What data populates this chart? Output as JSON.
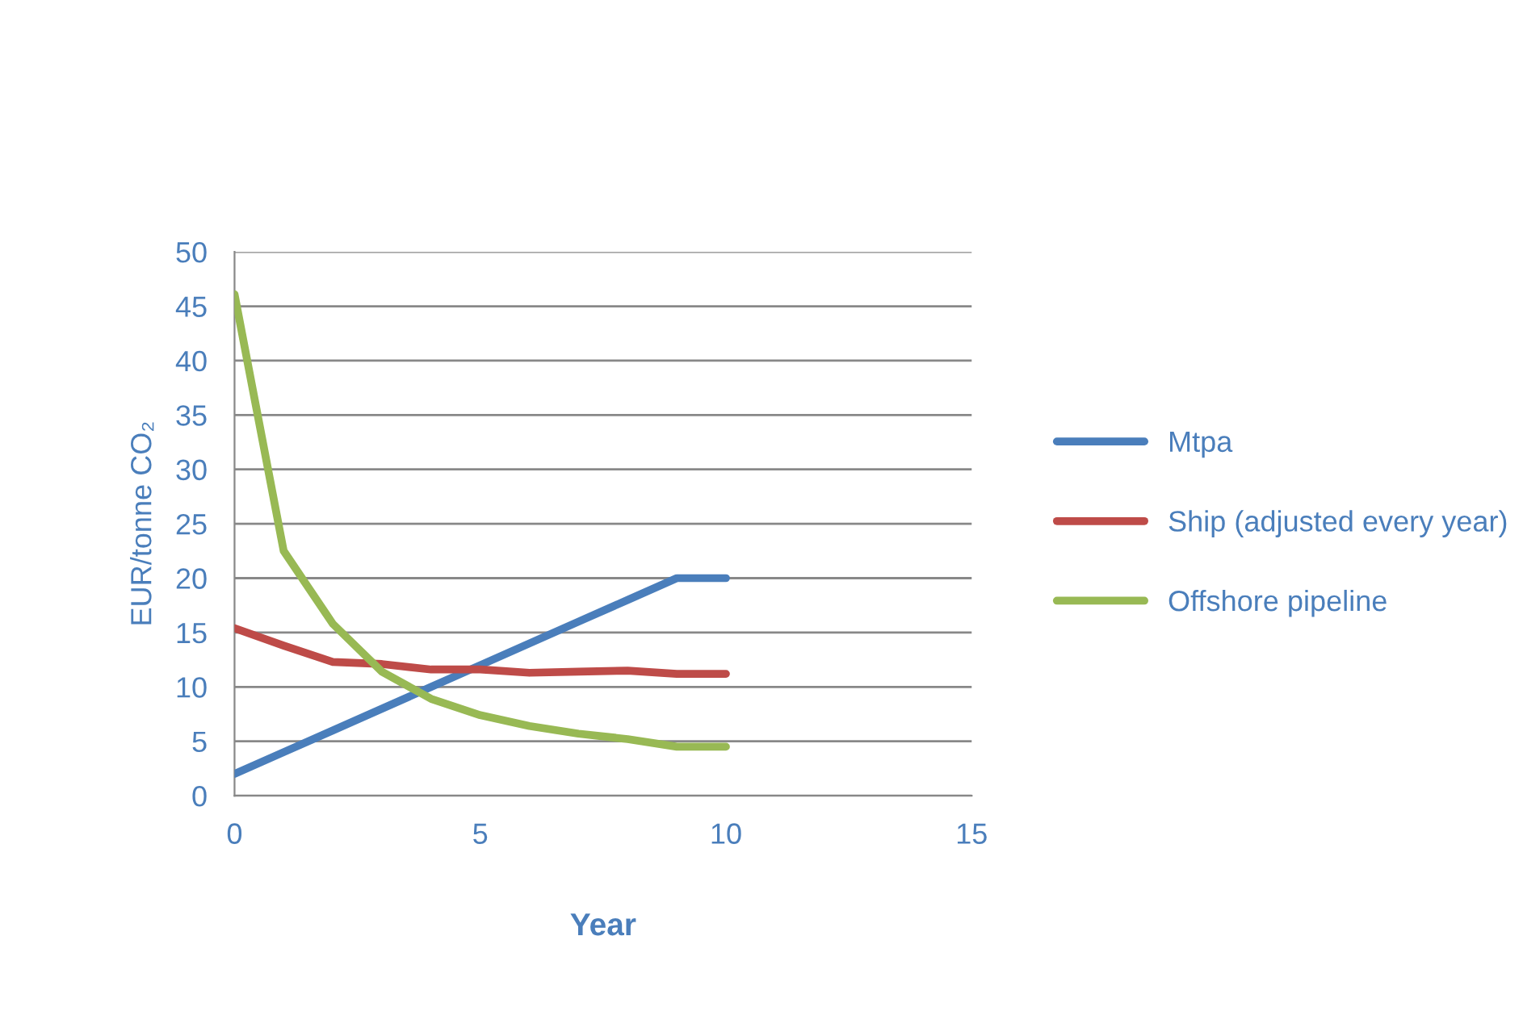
{
  "chart_data": {
    "type": "line",
    "xlabel": "Year",
    "ylabel": "EUR/tonne CO₂",
    "x": [
      0,
      1,
      2,
      3,
      4,
      5,
      6,
      7,
      8,
      9,
      10
    ],
    "series": [
      {
        "name": "Mtpa",
        "color": "#4a7ebb",
        "values": [
          2,
          4,
          6,
          8,
          10,
          12,
          14,
          16,
          18,
          20,
          20
        ]
      },
      {
        "name": "Ship (adjusted every year)",
        "color": "#be4b48",
        "values": [
          15.4,
          13.8,
          12.3,
          12.1,
          11.6,
          11.6,
          11.3,
          11.4,
          11.5,
          11.2,
          11.2
        ]
      },
      {
        "name": "Offshore pipeline",
        "color": "#98b954",
        "values": [
          46.1,
          22.5,
          15.8,
          11.4,
          8.9,
          7.4,
          6.4,
          5.7,
          5.2,
          4.5,
          4.5
        ]
      }
    ],
    "xlim": [
      0,
      15
    ],
    "xticks": [
      0,
      5,
      10,
      15
    ],
    "ylim": [
      0,
      50
    ],
    "yticks": [
      0,
      5,
      10,
      15,
      20,
      25,
      30,
      35,
      40,
      45,
      50
    ],
    "grid": "y",
    "legend": "right",
    "marker": "none",
    "line_style": "solid"
  }
}
